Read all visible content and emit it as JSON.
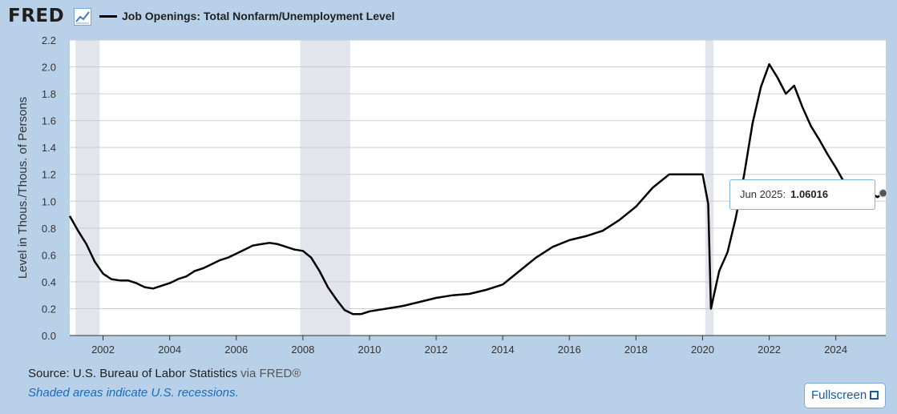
{
  "header": {
    "logo_text": "FRED",
    "logo_icon": "trend-chart-icon"
  },
  "chart_data": {
    "type": "line",
    "title": "Job Openings: Total Nonfarm/Unemployment Level",
    "xlabel": "",
    "ylabel": "Level in Thous./Thous. of Persons",
    "xlim": [
      2001.0,
      2025.5
    ],
    "ylim": [
      0.0,
      2.2
    ],
    "y_ticks": [
      0.0,
      0.2,
      0.4,
      0.6,
      0.8,
      1.0,
      1.2,
      1.4,
      1.6,
      1.8,
      2.0,
      2.2
    ],
    "x_ticks": [
      2002,
      2004,
      2006,
      2008,
      2010,
      2012,
      2014,
      2016,
      2018,
      2020,
      2022,
      2024
    ],
    "grid": true,
    "legend": "top-left",
    "recessions": [
      [
        2001.17,
        2001.9
      ],
      [
        2007.92,
        2009.42
      ],
      [
        2020.08,
        2020.33
      ]
    ],
    "series": [
      {
        "name": "Job Openings: Total Nonfarm/Unemployment Level",
        "color": "#000000",
        "x": [
          2001.0,
          2001.25,
          2001.5,
          2001.75,
          2002.0,
          2002.25,
          2002.5,
          2002.75,
          2003.0,
          2003.25,
          2003.5,
          2003.75,
          2004.0,
          2004.25,
          2004.5,
          2004.75,
          2005.0,
          2005.25,
          2005.5,
          2005.75,
          2006.0,
          2006.25,
          2006.5,
          2006.75,
          2007.0,
          2007.25,
          2007.5,
          2007.75,
          2008.0,
          2008.25,
          2008.5,
          2008.75,
          2009.0,
          2009.25,
          2009.5,
          2009.75,
          2010.0,
          2010.5,
          2011.0,
          2011.5,
          2012.0,
          2012.5,
          2013.0,
          2013.5,
          2014.0,
          2014.5,
          2015.0,
          2015.5,
          2016.0,
          2016.5,
          2017.0,
          2017.5,
          2018.0,
          2018.5,
          2019.0,
          2019.5,
          2020.0,
          2020.17,
          2020.25,
          2020.5,
          2020.75,
          2021.0,
          2021.25,
          2021.5,
          2021.75,
          2022.0,
          2022.25,
          2022.5,
          2022.75,
          2023.0,
          2023.25,
          2023.5,
          2023.75,
          2024.0,
          2024.25,
          2024.5,
          2024.75,
          2025.0,
          2025.25,
          2025.42
        ],
        "values": [
          0.89,
          0.78,
          0.68,
          0.55,
          0.46,
          0.42,
          0.41,
          0.41,
          0.39,
          0.36,
          0.35,
          0.37,
          0.39,
          0.42,
          0.44,
          0.48,
          0.5,
          0.53,
          0.56,
          0.58,
          0.61,
          0.64,
          0.67,
          0.68,
          0.69,
          0.68,
          0.66,
          0.64,
          0.63,
          0.58,
          0.48,
          0.36,
          0.27,
          0.19,
          0.16,
          0.16,
          0.18,
          0.2,
          0.22,
          0.25,
          0.28,
          0.3,
          0.31,
          0.34,
          0.38,
          0.48,
          0.58,
          0.66,
          0.71,
          0.74,
          0.78,
          0.86,
          0.96,
          1.1,
          1.2,
          1.2,
          1.2,
          0.98,
          0.2,
          0.48,
          0.62,
          0.88,
          1.2,
          1.58,
          1.85,
          2.02,
          1.92,
          1.8,
          1.86,
          1.7,
          1.56,
          1.46,
          1.35,
          1.25,
          1.14,
          1.05,
          1.09,
          1.07,
          1.03,
          1.06
        ]
      }
    ]
  },
  "tooltip": {
    "date": "Jun 2025:",
    "value": "1.06016"
  },
  "footer": {
    "source_prefix": "Source: U.S. Bureau of Labor Statistics",
    "source_via": "via FRED®",
    "recession_note": "Shaded areas indicate U.S. recessions.",
    "fullscreen_label": "Fullscreen",
    "fullscreen_icon": "fullscreen-icon"
  }
}
